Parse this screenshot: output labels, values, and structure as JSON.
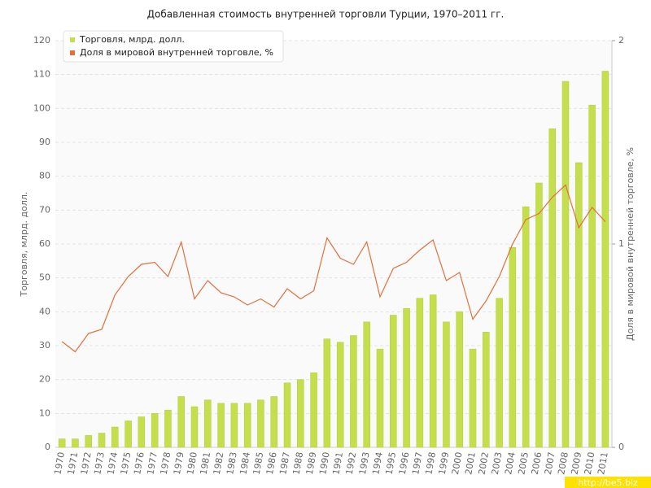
{
  "chart_data": {
    "type": "bar_line",
    "title": "Добавленная стоимость внутренней торговли Турции, 1970–2011 гг.",
    "y_label": "Торговля, млрд. долл.",
    "y2_label": "Доля в мировой внутренней торговле, %",
    "watermark": "http://be5.biz",
    "legend": "top-left",
    "grid": true,
    "categories": [
      "1970",
      "1971",
      "1972",
      "1973",
      "1974",
      "1975",
      "1976",
      "1977",
      "1978",
      "1979",
      "1980",
      "1981",
      "1982",
      "1983",
      "1984",
      "1985",
      "1986",
      "1987",
      "1988",
      "1989",
      "1990",
      "1991",
      "1992",
      "1993",
      "1994",
      "1995",
      "1996",
      "1997",
      "1998",
      "1999",
      "2000",
      "2001",
      "2002",
      "2003",
      "2004",
      "2005",
      "2006",
      "2007",
      "2008",
      "2009",
      "2010",
      "2011"
    ],
    "ylim": [
      0,
      120
    ],
    "yticks": [
      0,
      10,
      20,
      30,
      40,
      50,
      60,
      70,
      80,
      90,
      100,
      110,
      120
    ],
    "y2lim": [
      0,
      2
    ],
    "y2ticks": [
      0,
      1,
      2
    ],
    "series": [
      {
        "name": "Торговля, млрд. долл.",
        "color": "#c5de4c",
        "kind": "bar",
        "values": [
          2.5,
          2.5,
          3.5,
          4.2,
          6,
          7.8,
          9,
          10,
          11,
          15,
          12,
          14,
          13,
          13,
          13,
          14,
          15,
          19,
          20,
          22,
          32,
          31,
          33,
          37,
          29,
          39,
          41,
          44,
          45,
          37,
          40,
          29,
          34,
          44,
          59,
          71,
          78,
          94,
          108,
          84,
          101,
          111
        ]
      },
      {
        "name": "Доля в мировой внутренней торговле, %",
        "color": "#e0703c",
        "kind": "line",
        "axis": "y2",
        "values": [
          0.52,
          0.47,
          0.56,
          0.58,
          0.75,
          0.84,
          0.9,
          0.91,
          0.84,
          1.01,
          0.73,
          0.82,
          0.76,
          0.74,
          0.7,
          0.73,
          0.69,
          0.78,
          0.73,
          0.77,
          1.03,
          0.93,
          0.9,
          1.01,
          0.74,
          0.88,
          0.91,
          0.97,
          1.02,
          0.82,
          0.86,
          0.63,
          0.72,
          0.84,
          1.0,
          1.12,
          1.15,
          1.23,
          1.29,
          1.08,
          1.18,
          1.11
        ]
      }
    ]
  }
}
